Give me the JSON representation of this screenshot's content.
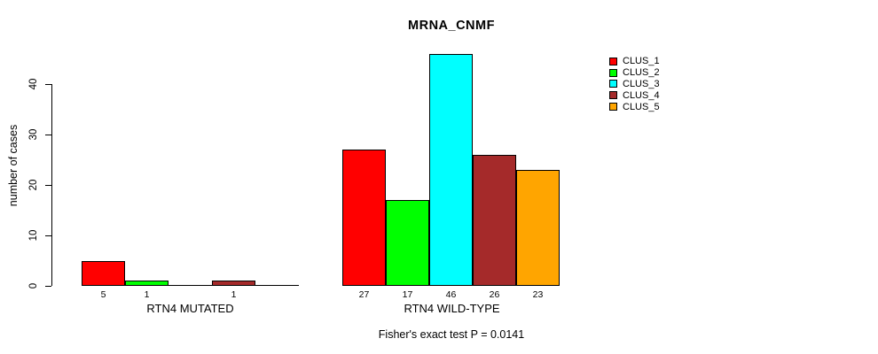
{
  "chart_data": {
    "type": "bar",
    "title": "MRNA_CNMF",
    "ylabel": "number of cases",
    "footnote": "Fisher's exact test P = 0.0141",
    "grid": false,
    "yticks": [
      0,
      10,
      20,
      30,
      40
    ],
    "ylim": [
      0,
      46
    ],
    "categories": [
      "RTN4 MUTATED",
      "RTN4 WILD-TYPE"
    ],
    "groups": [
      {
        "label": "RTN4 MUTATED",
        "values": [
          5,
          1,
          0,
          1,
          0
        ]
      },
      {
        "label": "RTN4 WILD-TYPE",
        "values": [
          27,
          17,
          46,
          26,
          23
        ]
      }
    ],
    "series": [
      "CLUS_1",
      "CLUS_2",
      "CLUS_3",
      "CLUS_4",
      "CLUS_5"
    ],
    "colors": [
      "#FF0000",
      "#00FF00",
      "#00FFFF",
      "#A52A2A",
      "#FFA500"
    ],
    "legend": {
      "position": "top-right",
      "entries": [
        {
          "label": "CLUS_1",
          "color": "#FF0000"
        },
        {
          "label": "CLUS_2",
          "color": "#00FF00"
        },
        {
          "label": "CLUS_3",
          "color": "#00FFFF"
        },
        {
          "label": "CLUS_4",
          "color": "#A52A2A"
        },
        {
          "label": "CLUS_5",
          "color": "#FFA500"
        }
      ]
    }
  }
}
